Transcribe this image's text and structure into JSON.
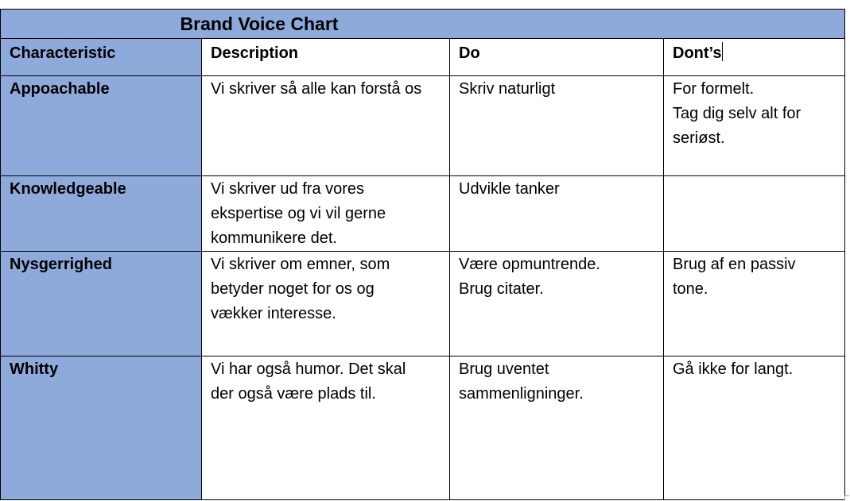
{
  "title": "Brand Voice Chart",
  "headers": {
    "characteristic": "Characteristic",
    "description": "Description",
    "do": "Do",
    "donts": "Dont’s"
  },
  "rows": [
    {
      "characteristic": "Appoachable",
      "description": [
        "Vi skriver så alle kan forstå os"
      ],
      "do": [
        "Skriv naturligt"
      ],
      "donts": [
        "For formelt.",
        "Tag dig selv alt for",
        "seriøst."
      ]
    },
    {
      "characteristic": "Knowledgeable",
      "description": [
        "Vi skriver ud fra vores",
        "ekspertise og vi vil gerne",
        "kommunikere det."
      ],
      "do": [
        "Udvikle tanker"
      ],
      "donts": []
    },
    {
      "characteristic": "Nysgerrighed",
      "description": [
        "Vi skriver om emner, som",
        "betyder noget for os og",
        "vækker interesse."
      ],
      "do": [
        "Være opmuntrende.",
        "Brug citater."
      ],
      "donts": [
        "Brug af en passiv",
        "tone."
      ]
    },
    {
      "characteristic": "Whitty",
      "description": [
        "Vi har også humor. Det skal",
        "der også være plads til."
      ],
      "do": [
        "Brug uventet",
        "sammenligninger."
      ],
      "donts": [
        "Gå ikke for langt."
      ]
    }
  ],
  "colors": {
    "accent_blue": "#8eaadb",
    "border": "#000000"
  }
}
